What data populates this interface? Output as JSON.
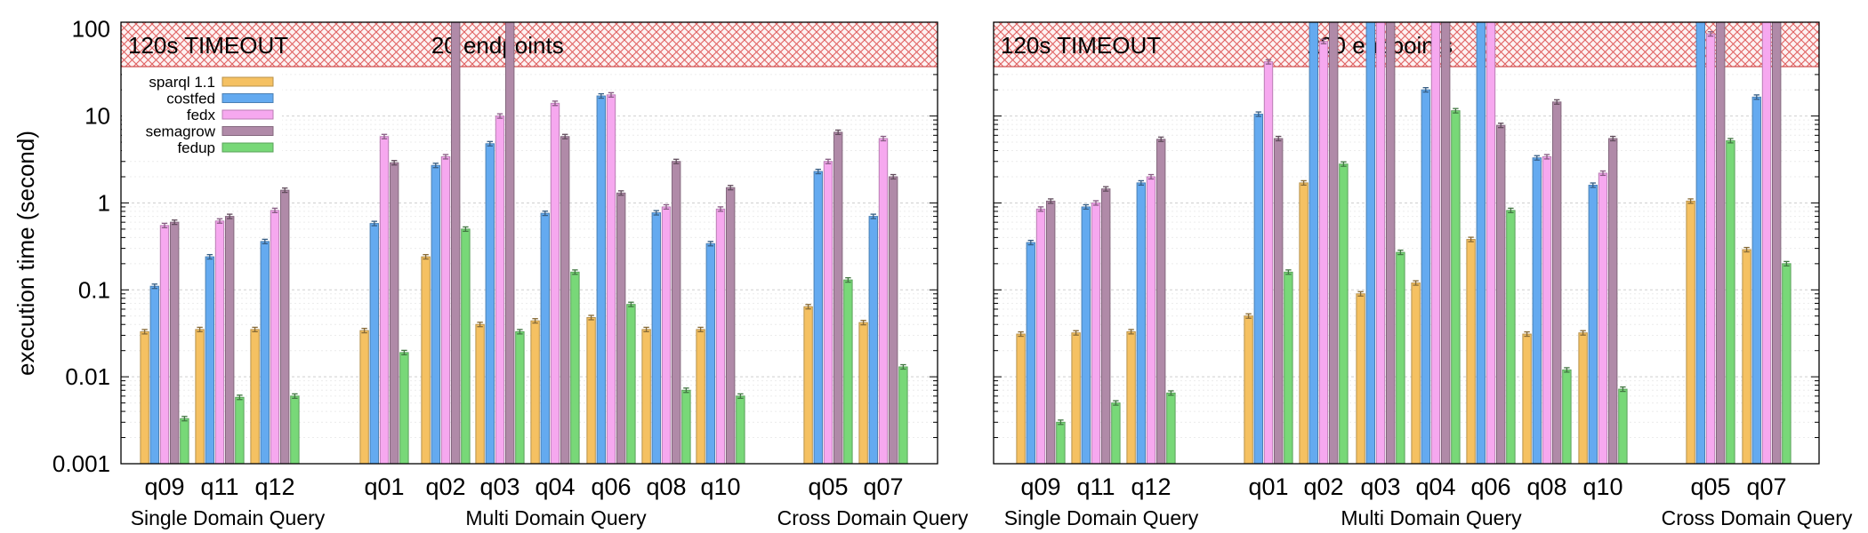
{
  "colors": {
    "sparql 1.1": "#f5c162",
    "costfed": "#64aaf0",
    "fedx": "#f6a8ef",
    "semagrow": "#b08aa8",
    "fedup": "#78d878",
    "timeout_hatch": "#e06060"
  },
  "chart_data": {
    "type": "bar",
    "ylabel": "execution time (second)",
    "yscale": "log",
    "ylim": [
      0.001,
      120
    ],
    "yticks": [
      "0.001",
      "0.01",
      "0.1",
      "1",
      "10",
      "100"
    ],
    "timeout_label": "120s TIMEOUT",
    "legend": {
      "position": "top-left",
      "entries": [
        "sparql 1.1",
        "costfed",
        "fedx",
        "semagrow",
        "fedup"
      ]
    },
    "panels": [
      {
        "title": "20 endpoints",
        "groups": [
          {
            "label": "Single Domain Query",
            "queries": [
              {
                "q": "q09",
                "values": [
                  0.033,
                  0.11,
                  0.55,
                  0.6,
                  0.0033
                ]
              },
              {
                "q": "q11",
                "values": [
                  0.035,
                  0.24,
                  0.62,
                  0.7,
                  0.0058
                ]
              },
              {
                "q": "q12",
                "values": [
                  0.035,
                  0.36,
                  0.82,
                  1.4,
                  0.006
                ]
              }
            ]
          },
          {
            "label": "Multi Domain Query",
            "queries": [
              {
                "q": "q01",
                "values": [
                  0.034,
                  0.58,
                  5.8,
                  2.9,
                  0.019
                ]
              },
              {
                "q": "q02",
                "values": [
                  0.24,
                  2.7,
                  3.4,
                  120,
                  0.5
                ]
              },
              {
                "q": "q03",
                "values": [
                  0.04,
                  4.8,
                  10,
                  120,
                  0.033
                ]
              },
              {
                "q": "q04",
                "values": [
                  0.044,
                  0.76,
                  14,
                  5.8,
                  0.16
                ]
              },
              {
                "q": "q06",
                "values": [
                  0.048,
                  17,
                  17.5,
                  1.3,
                  0.068
                ]
              },
              {
                "q": "q08",
                "values": [
                  0.035,
                  0.77,
                  0.9,
                  3.0,
                  0.007
                ]
              },
              {
                "q": "q10",
                "values": [
                  0.035,
                  0.34,
                  0.85,
                  1.5,
                  0.006
                ]
              }
            ]
          },
          {
            "label": "Cross Domain Query",
            "queries": [
              {
                "q": "q05",
                "values": [
                  0.064,
                  2.3,
                  3.0,
                  6.5,
                  0.13
                ]
              },
              {
                "q": "q07",
                "values": [
                  0.042,
                  0.7,
                  5.5,
                  2.0,
                  0.013
                ]
              }
            ]
          }
        ]
      },
      {
        "title": "200 endpoints",
        "groups": [
          {
            "label": "Single Domain Query",
            "queries": [
              {
                "q": "q09",
                "values": [
                  0.031,
                  0.35,
                  0.85,
                  1.05,
                  0.003
                ]
              },
              {
                "q": "q11",
                "values": [
                  0.032,
                  0.9,
                  1.0,
                  1.45,
                  0.005
                ]
              },
              {
                "q": "q12",
                "values": [
                  0.033,
                  1.7,
                  2.0,
                  5.4,
                  0.0065
                ]
              }
            ]
          },
          {
            "label": "Multi Domain Query",
            "queries": [
              {
                "q": "q01",
                "values": [
                  0.05,
                  10.5,
                  42,
                  5.5,
                  0.16
                ]
              },
              {
                "q": "q02",
                "values": [
                  1.7,
                  120,
                  72,
                  120,
                  2.8
                ]
              },
              {
                "q": "q03",
                "values": [
                  0.09,
                  120,
                  120,
                  120,
                  0.27
                ]
              },
              {
                "q": "q04",
                "values": [
                  0.12,
                  20,
                  120,
                  120,
                  11.5
                ]
              },
              {
                "q": "q06",
                "values": [
                  0.38,
                  120,
                  120,
                  7.8,
                  0.82
                ]
              },
              {
                "q": "q08",
                "values": [
                  0.031,
                  3.3,
                  3.4,
                  14.5,
                  0.012
                ]
              },
              {
                "q": "q10",
                "values": [
                  0.032,
                  1.6,
                  2.2,
                  5.5,
                  0.0072
                ]
              }
            ]
          },
          {
            "label": "Cross Domain Query",
            "queries": [
              {
                "q": "q05",
                "values": [
                  1.05,
                  120,
                  88,
                  120,
                  5.2
                ]
              },
              {
                "q": "q07",
                "values": [
                  0.29,
                  16.5,
                  120,
                  120,
                  0.2
                ]
              }
            ]
          }
        ]
      }
    ]
  }
}
